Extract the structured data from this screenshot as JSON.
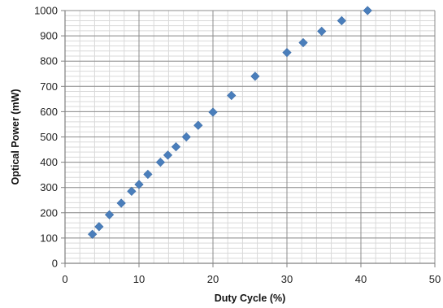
{
  "chart_data": {
    "type": "scatter",
    "title": "",
    "xlabel": "Duty Cycle (%)",
    "ylabel": "Optical Power (mW)",
    "xlim": [
      0,
      50
    ],
    "ylim": [
      0,
      1000
    ],
    "x_major_step": 10,
    "y_major_step": 100,
    "x_minor_step": 2,
    "y_minor_step": 20,
    "x_tick_labels": [
      "0",
      "10",
      "20",
      "30",
      "40",
      "50"
    ],
    "y_tick_labels": [
      "0",
      "100",
      "200",
      "300",
      "400",
      "500",
      "600",
      "700",
      "800",
      "900",
      "1000"
    ],
    "grid": true,
    "legend": "none",
    "marker": "diamond",
    "series": [
      {
        "color": "#4a7ebb",
        "points": [
          {
            "x": 3.7,
            "y": 115
          },
          {
            "x": 4.6,
            "y": 145
          },
          {
            "x": 6.0,
            "y": 192
          },
          {
            "x": 7.6,
            "y": 238
          },
          {
            "x": 9.0,
            "y": 285
          },
          {
            "x": 10.0,
            "y": 312
          },
          {
            "x": 11.2,
            "y": 352
          },
          {
            "x": 12.9,
            "y": 400
          },
          {
            "x": 13.9,
            "y": 428
          },
          {
            "x": 15.0,
            "y": 461
          },
          {
            "x": 16.4,
            "y": 500
          },
          {
            "x": 18.0,
            "y": 546
          },
          {
            "x": 20.0,
            "y": 598
          },
          {
            "x": 22.5,
            "y": 664
          },
          {
            "x": 25.7,
            "y": 740
          },
          {
            "x": 30.0,
            "y": 834
          },
          {
            "x": 32.2,
            "y": 873
          },
          {
            "x": 34.7,
            "y": 918
          },
          {
            "x": 37.4,
            "y": 960
          },
          {
            "x": 40.9,
            "y": 1000
          }
        ]
      }
    ]
  }
}
